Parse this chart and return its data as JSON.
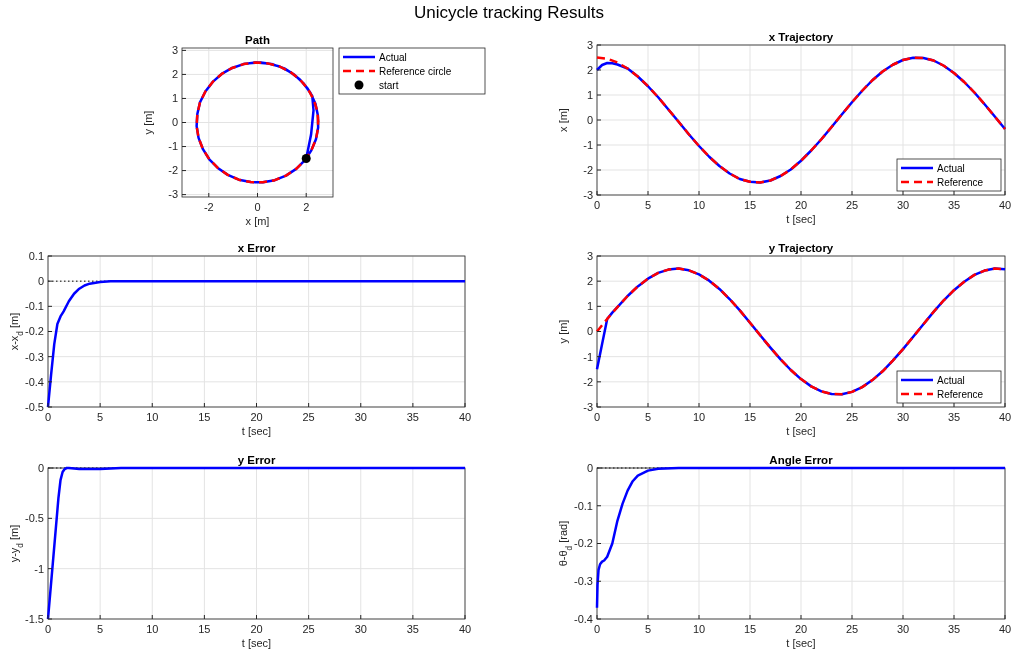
{
  "chart_data": [
    {
      "type": "line",
      "title": "Path",
      "xlabel": "x [m]",
      "ylabel": "y [m]",
      "annotations": [
        "Unicycle tracking Results"
      ],
      "xlim": [
        -3.1,
        3.1
      ],
      "ylim": [
        -3.1,
        3.1
      ],
      "xticks": [
        -2,
        0,
        2
      ],
      "yticks": [
        -3,
        -2,
        -1,
        0,
        1,
        2,
        3
      ],
      "grid": true,
      "legend": "top right",
      "series": [
        {
          "name": "Actual",
          "color": "#0000ff",
          "line_style": "solid",
          "x": [
            2,
            2.2,
            2.3,
            2.25,
            2.06,
            1.74,
            1.35,
            0.91,
            0.42,
            -0.07,
            -0.57,
            -1.04,
            -1.47,
            -1.84,
            -2.14,
            -2.36,
            -2.47,
            -2.5,
            -2.42,
            -2.24,
            -1.98,
            -1.63,
            -1.22,
            -0.77,
            -0.28,
            0.22,
            0.71,
            1.17,
            1.59,
            1.94,
            2.21,
            2.4,
            2.49,
            2.48,
            2.38,
            2.17,
            1.88,
            1.52,
            1.1,
            0.63,
            0.14,
            -0.36
          ],
          "values": [
            -1.5,
            -0.5,
            0.5,
            1.1,
            1.41,
            1.79,
            2.1,
            2.33,
            2.46,
            2.5,
            2.43,
            2.27,
            2.02,
            1.69,
            1.29,
            0.84,
            0.35,
            -0.15,
            -0.64,
            -1.11,
            -1.53,
            -1.89,
            -2.18,
            -2.38,
            -2.48,
            -2.49,
            -2.4,
            -2.21,
            -1.93,
            -1.58,
            -1.16,
            -0.7,
            -0.21,
            0.29,
            0.78,
            1.24,
            1.64,
            1.98,
            2.25,
            2.42,
            2.5,
            2.47
          ]
        },
        {
          "name": "Reference circle",
          "color": "#ff0000",
          "line_style": "dashed",
          "x": [
            2.5,
            2.45,
            2.3,
            2.06,
            1.74,
            1.35,
            0.91,
            0.42,
            -0.07,
            -0.57,
            -1.04,
            -1.47,
            -1.84,
            -2.14,
            -2.36,
            -2.47,
            -2.5,
            -2.42,
            -2.24,
            -1.98,
            -1.63,
            -1.22,
            -0.77,
            -0.28,
            0.22,
            0.71,
            1.17,
            1.59,
            1.94,
            2.21,
            2.4,
            2.49,
            2.48
          ],
          "values": [
            0,
            0.5,
            0.97,
            1.41,
            1.79,
            2.1,
            2.33,
            2.46,
            2.5,
            2.43,
            2.27,
            2.02,
            1.69,
            1.29,
            0.84,
            0.35,
            -0.15,
            -0.64,
            -1.11,
            -1.53,
            -1.89,
            -2.18,
            -2.38,
            -2.48,
            -2.49,
            -2.4,
            -2.21,
            -1.93,
            -1.58,
            -1.16,
            -0.7,
            -0.21,
            0.29
          ]
        },
        {
          "name": "start",
          "type": "scatter",
          "marker": "circle",
          "color": "#000000",
          "x": [
            2
          ],
          "values": [
            -1.5
          ]
        }
      ]
    },
    {
      "type": "line",
      "title": "x Trajectory",
      "xlabel": "t [sec]",
      "ylabel": "x [m]",
      "xlim": [
        0,
        40
      ],
      "ylim": [
        -3,
        3
      ],
      "xticks": [
        0,
        5,
        10,
        15,
        20,
        25,
        30,
        35,
        40
      ],
      "yticks": [
        -3,
        -2,
        -1,
        0,
        1,
        2,
        3
      ],
      "grid": true,
      "legend": "bottom right",
      "series": [
        {
          "name": "Actual",
          "color": "#0000ff",
          "line_style": "solid",
          "x": [
            0,
            0.5,
            1,
            1.5,
            2,
            3,
            4,
            5,
            6,
            7,
            8,
            9,
            10,
            11,
            12,
            13,
            14,
            15,
            16,
            17,
            18,
            19,
            20,
            21,
            22,
            23,
            24,
            25,
            26,
            27,
            28,
            29,
            30,
            31,
            32,
            33,
            34,
            35,
            36,
            37,
            38,
            39,
            40
          ],
          "values": [
            2,
            2.2,
            2.28,
            2.27,
            2.22,
            2.06,
            1.74,
            1.35,
            0.91,
            0.42,
            -0.07,
            -0.57,
            -1.04,
            -1.47,
            -1.84,
            -2.14,
            -2.36,
            -2.47,
            -2.5,
            -2.42,
            -2.24,
            -1.98,
            -1.63,
            -1.22,
            -0.77,
            -0.28,
            0.22,
            0.71,
            1.17,
            1.59,
            1.94,
            2.21,
            2.4,
            2.49,
            2.48,
            2.38,
            2.17,
            1.88,
            1.52,
            1.1,
            0.63,
            0.14,
            -0.36
          ]
        },
        {
          "name": "Reference",
          "color": "#ff0000",
          "line_style": "dashed",
          "x": [
            0,
            1,
            2,
            3,
            4,
            5,
            6,
            7,
            8,
            9,
            10,
            11,
            12,
            13,
            14,
            15,
            16,
            17,
            18,
            19,
            20,
            21,
            22,
            23,
            24,
            25,
            26,
            27,
            28,
            29,
            30,
            31,
            32,
            33,
            34,
            35,
            36,
            37,
            38,
            39,
            40
          ],
          "values": [
            2.5,
            2.45,
            2.3,
            2.06,
            1.74,
            1.35,
            0.91,
            0.42,
            -0.07,
            -0.57,
            -1.04,
            -1.47,
            -1.84,
            -2.14,
            -2.36,
            -2.47,
            -2.5,
            -2.42,
            -2.24,
            -1.98,
            -1.63,
            -1.22,
            -0.77,
            -0.28,
            0.22,
            0.71,
            1.17,
            1.59,
            1.94,
            2.21,
            2.4,
            2.49,
            2.48,
            2.38,
            2.17,
            1.88,
            1.52,
            1.1,
            0.63,
            0.14,
            -0.36
          ]
        }
      ]
    },
    {
      "type": "line",
      "title": "x Error",
      "xlabel": "t [sec]",
      "ylabel": "x-x$_{d}$ [m]",
      "xlim": [
        0,
        40
      ],
      "ylim": [
        -0.5,
        0.1
      ],
      "xticks": [
        0,
        5,
        10,
        15,
        20,
        25,
        30,
        35,
        40
      ],
      "yticks": [
        -0.5,
        -0.4,
        -0.3,
        -0.2,
        -0.1,
        0,
        0.1
      ],
      "grid": true,
      "ref_lines": [
        {
          "axis": "y",
          "value": 0,
          "color": "#000000",
          "line_style": "dotted"
        }
      ],
      "series": [
        {
          "color": "#0000ff",
          "x": [
            0,
            0.3,
            0.6,
            0.9,
            1.2,
            1.5,
            2,
            2.5,
            3,
            3.5,
            4,
            5,
            6,
            40
          ],
          "values": [
            -0.5,
            -0.37,
            -0.25,
            -0.17,
            -0.14,
            -0.12,
            -0.08,
            -0.05,
            -0.03,
            -0.017,
            -0.01,
            -0.003,
            0,
            0
          ]
        }
      ]
    },
    {
      "type": "line",
      "title": "y Trajectory",
      "xlabel": "t [sec]",
      "ylabel": "y [m]",
      "xlim": [
        0,
        40
      ],
      "ylim": [
        -3,
        3
      ],
      "xticks": [
        0,
        5,
        10,
        15,
        20,
        25,
        30,
        35,
        40
      ],
      "yticks": [
        -3,
        -2,
        -1,
        0,
        1,
        2,
        3
      ],
      "grid": true,
      "legend": "bottom right",
      "series": [
        {
          "name": "Actual",
          "color": "#0000ff",
          "line_style": "solid",
          "x": [
            0,
            0.5,
            1,
            1.5,
            2,
            3,
            4,
            5,
            6,
            7,
            8,
            9,
            10,
            11,
            12,
            13,
            14,
            15,
            16,
            17,
            18,
            19,
            20,
            21,
            22,
            23,
            24,
            25,
            26,
            27,
            28,
            29,
            30,
            31,
            32,
            33,
            34,
            35,
            36,
            37,
            38,
            39,
            40
          ],
          "values": [
            -1.5,
            -0.5,
            0.5,
            0.75,
            0.97,
            1.41,
            1.79,
            2.1,
            2.33,
            2.46,
            2.5,
            2.43,
            2.27,
            2.02,
            1.69,
            1.29,
            0.84,
            0.35,
            -0.15,
            -0.64,
            -1.11,
            -1.53,
            -1.89,
            -2.18,
            -2.38,
            -2.48,
            -2.49,
            -2.4,
            -2.21,
            -1.93,
            -1.58,
            -1.16,
            -0.7,
            -0.21,
            0.29,
            0.78,
            1.24,
            1.64,
            1.98,
            2.25,
            2.42,
            2.5,
            2.47
          ]
        },
        {
          "name": "Reference",
          "color": "#ff0000",
          "line_style": "dashed",
          "x": [
            0,
            1,
            2,
            3,
            4,
            5,
            6,
            7,
            8,
            9,
            10,
            11,
            12,
            13,
            14,
            15,
            16,
            17,
            18,
            19,
            20,
            21,
            22,
            23,
            24,
            25,
            26,
            27,
            28,
            29,
            30,
            31,
            32,
            33,
            34,
            35,
            36,
            37,
            38,
            39,
            40
          ],
          "values": [
            0,
            0.5,
            0.97,
            1.41,
            1.79,
            2.1,
            2.33,
            2.46,
            2.5,
            2.43,
            2.27,
            2.02,
            1.69,
            1.29,
            0.84,
            0.35,
            -0.15,
            -0.64,
            -1.11,
            -1.53,
            -1.89,
            -2.18,
            -2.38,
            -2.48,
            -2.49,
            -2.4,
            -2.21,
            -1.93,
            -1.58,
            -1.16,
            -0.7,
            -0.21,
            0.29,
            0.78,
            1.24,
            1.64,
            1.98,
            2.25,
            2.42,
            2.5,
            2.47
          ]
        }
      ]
    },
    {
      "type": "line",
      "title": "y Error",
      "xlabel": "t [sec]",
      "ylabel": "y-y$_{d}$ [m]",
      "xlim": [
        0,
        40
      ],
      "ylim": [
        -1.5,
        0
      ],
      "xticks": [
        0,
        5,
        10,
        15,
        20,
        25,
        30,
        35,
        40
      ],
      "yticks": [
        -1.5,
        -1,
        -0.5,
        0
      ],
      "grid": true,
      "ref_lines": [
        {
          "axis": "y",
          "value": 0,
          "color": "#000000",
          "line_style": "dotted"
        }
      ],
      "series": [
        {
          "color": "#0000ff",
          "x": [
            0,
            0.5,
            1,
            1.2,
            1.4,
            1.6,
            1.8,
            2,
            3,
            5,
            7,
            40
          ],
          "values": [
            -1.5,
            -0.9,
            -0.3,
            -0.12,
            -0.04,
            -0.01,
            0,
            0,
            -0.01,
            -0.01,
            0,
            0
          ]
        }
      ]
    },
    {
      "type": "line",
      "title": "Angle Error",
      "xlabel": "t [sec]",
      "ylabel": "θ-θ$_{d}$ [rad]",
      "xlim": [
        0,
        40
      ],
      "ylim": [
        -0.4,
        0
      ],
      "xticks": [
        0,
        5,
        10,
        15,
        20,
        25,
        30,
        35,
        40
      ],
      "yticks": [
        -0.4,
        -0.3,
        -0.2,
        -0.1,
        0
      ],
      "grid": true,
      "ref_lines": [
        {
          "axis": "y",
          "value": 0,
          "color": "#000000",
          "line_style": "dotted"
        }
      ],
      "series": [
        {
          "color": "#0000ff",
          "x": [
            0,
            0.05,
            0.15,
            0.3,
            0.5,
            0.7,
            1,
            1.5,
            2,
            2.5,
            3,
            3.5,
            4,
            5,
            6,
            8,
            40
          ],
          "values": [
            -0.37,
            -0.31,
            -0.27,
            -0.255,
            -0.248,
            -0.245,
            -0.235,
            -0.2,
            -0.14,
            -0.095,
            -0.06,
            -0.035,
            -0.02,
            -0.007,
            -0.002,
            0,
            0
          ]
        }
      ]
    }
  ]
}
